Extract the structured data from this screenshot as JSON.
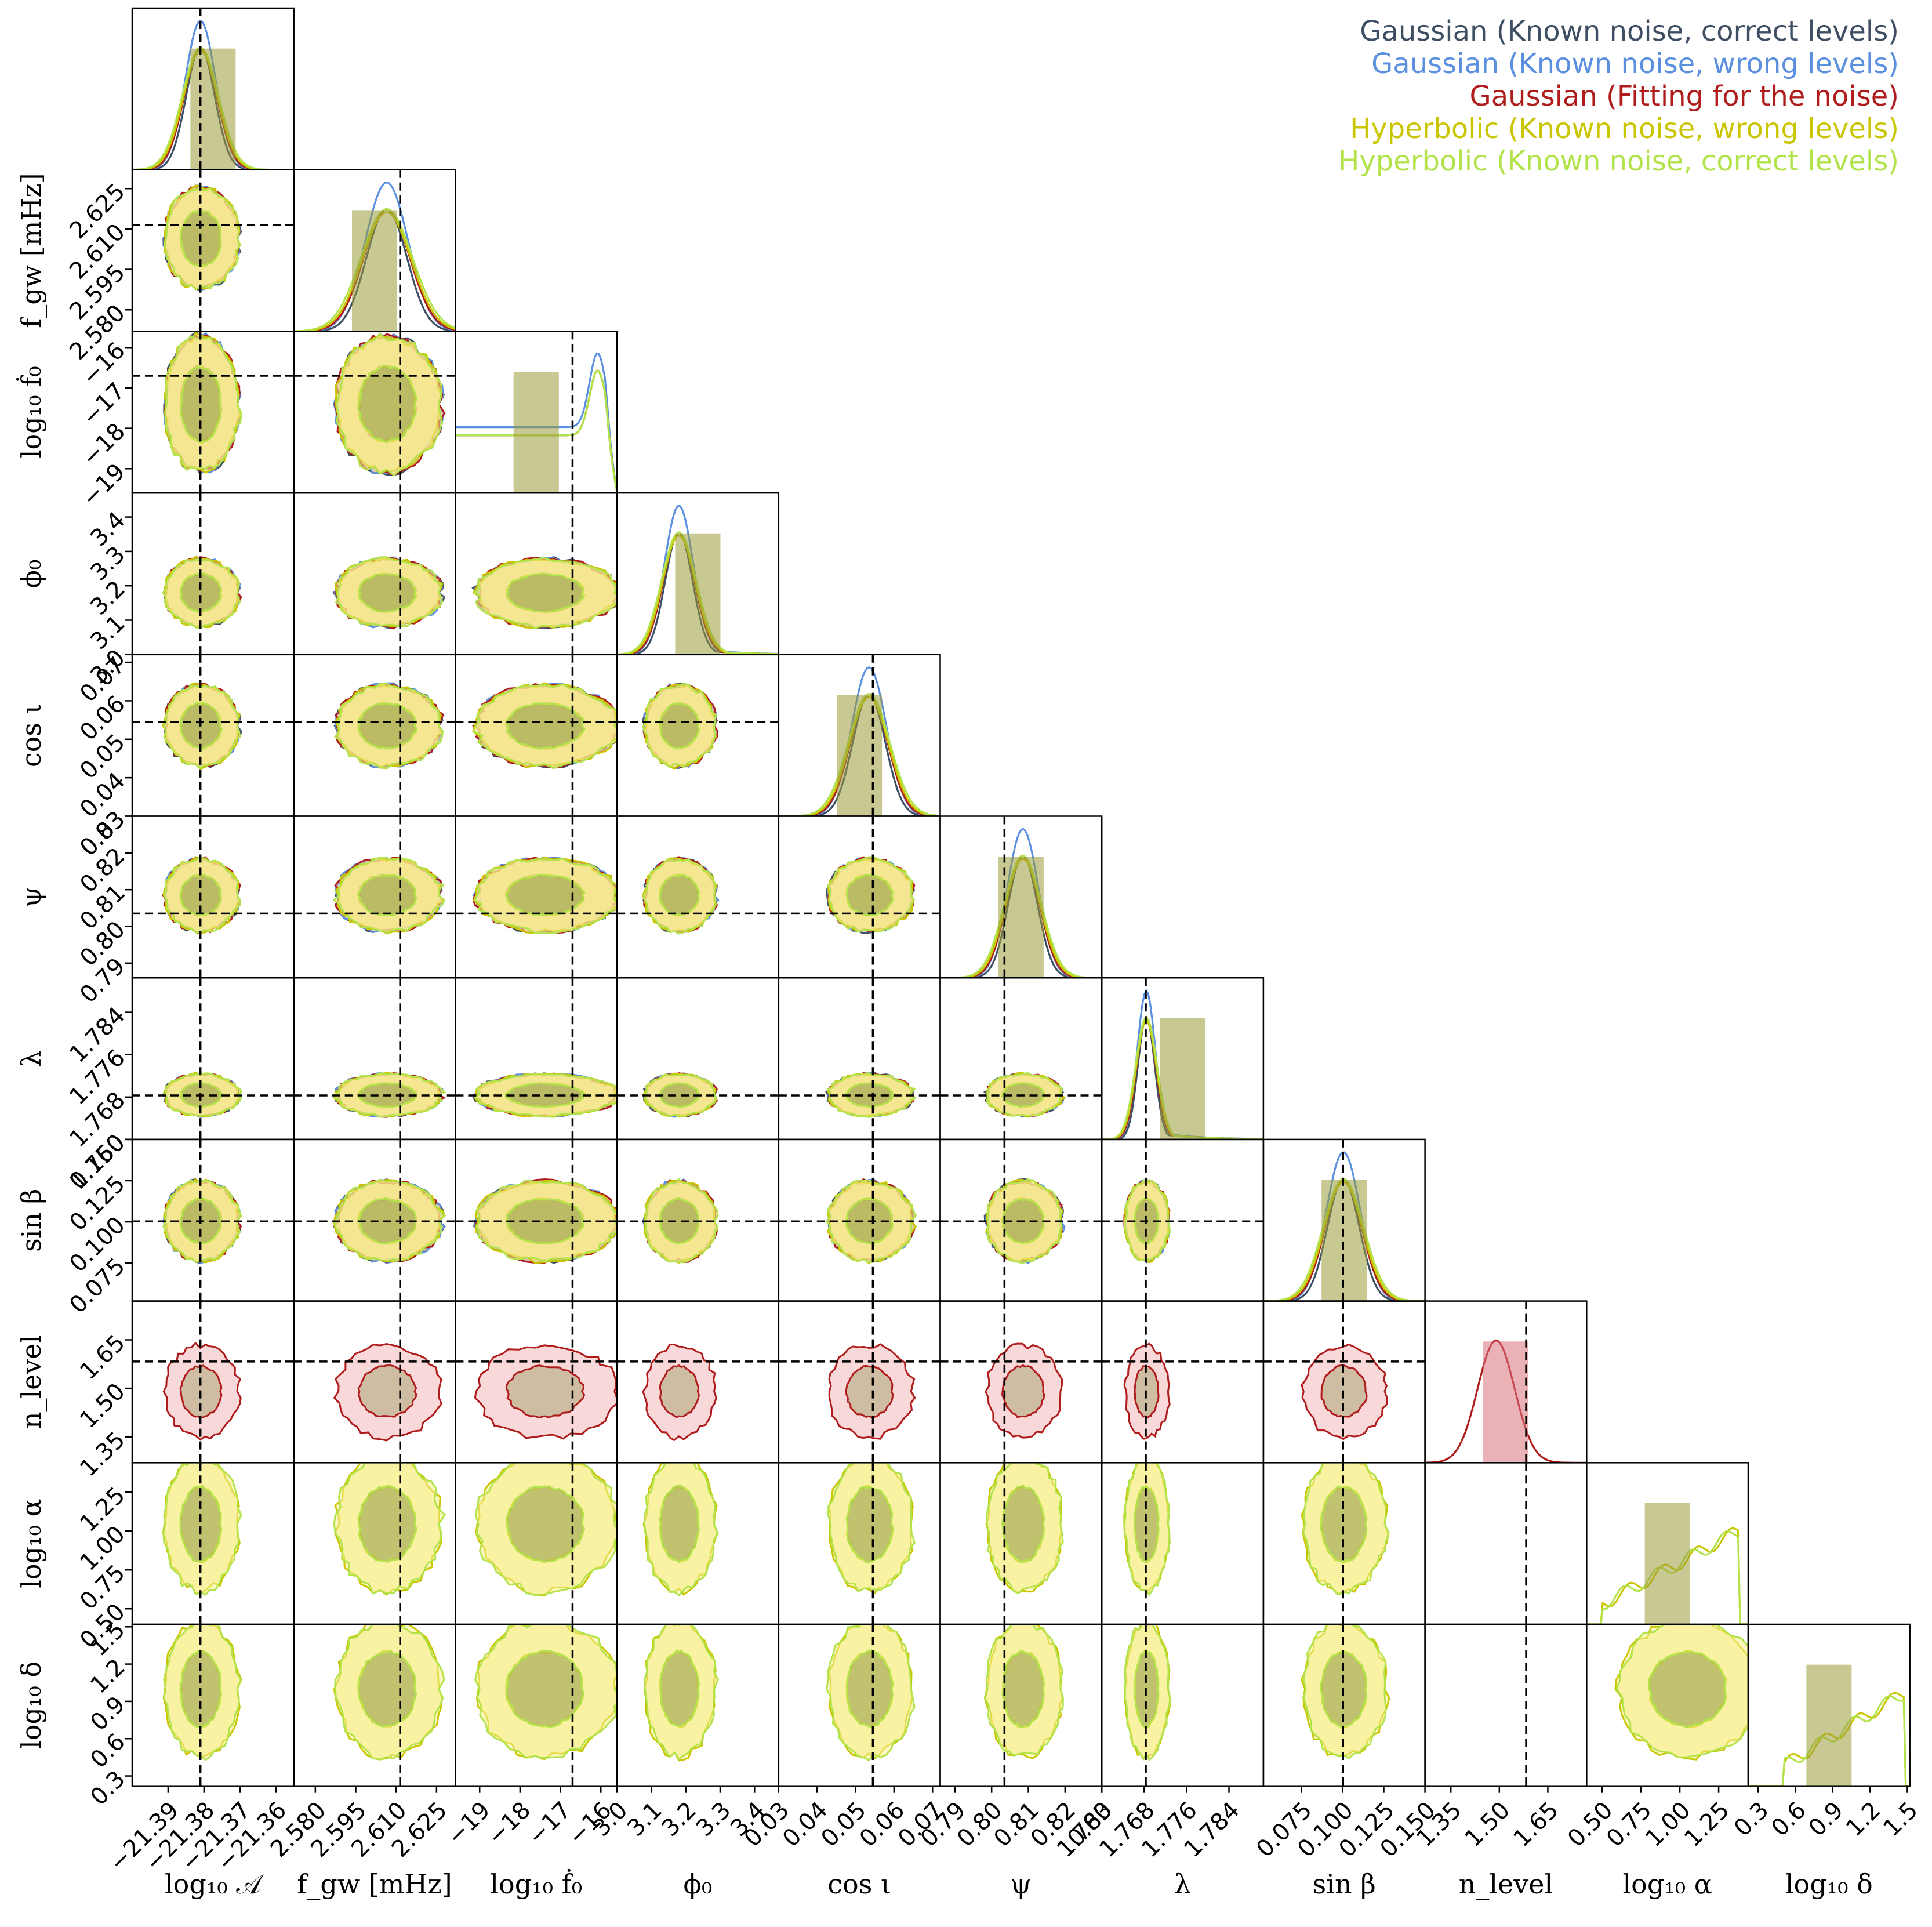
{
  "chart_data": {
    "type": "corner",
    "parameters": [
      {
        "id": "logA",
        "label": "log₁₀ 𝒜",
        "ticks": [
          "−21.39",
          "−21.38",
          "−21.37",
          "−21.36"
        ],
        "tick_values": [
          -21.39,
          -21.38,
          -21.37,
          -21.36
        ],
        "range": [
          -21.4,
          -21.355
        ],
        "truth": -21.381,
        "has_truth": true
      },
      {
        "id": "fgw",
        "label": "f_gw [mHz]",
        "ticks": [
          "2.580",
          "2.595",
          "2.610",
          "2.625"
        ],
        "tick_values": [
          2.58,
          2.595,
          2.61,
          2.625
        ],
        "range": [
          2.572,
          2.632
        ],
        "truth": 2.6115,
        "has_truth": true
      },
      {
        "id": "logfdot",
        "label": "log₁₀ ḟ₀",
        "ticks": [
          "−19",
          "−18",
          "−17",
          "−16"
        ],
        "tick_values": [
          -19,
          -18,
          -17,
          -16
        ],
        "range": [
          -19.6,
          -15.6
        ],
        "truth": -16.7,
        "has_truth": true
      },
      {
        "id": "phi0",
        "label": "ϕ₀",
        "ticks": [
          "3.0",
          "3.1",
          "3.2",
          "3.3",
          "3.4"
        ],
        "tick_values": [
          3.0,
          3.1,
          3.2,
          3.3,
          3.4
        ],
        "range": [
          3.0,
          3.47
        ],
        "truth": null,
        "has_truth": false
      },
      {
        "id": "cosi",
        "label": "cos ι",
        "ticks": [
          "0.03",
          "0.04",
          "0.05",
          "0.06",
          "0.07"
        ],
        "tick_values": [
          0.03,
          0.04,
          0.05,
          0.06,
          0.07
        ],
        "range": [
          0.03,
          0.072
        ],
        "truth": 0.0545,
        "has_truth": true
      },
      {
        "id": "psi",
        "label": "ψ",
        "ticks": [
          "0.79",
          "0.80",
          "0.81",
          "0.82",
          "0.83"
        ],
        "tick_values": [
          0.79,
          0.8,
          0.81,
          0.82,
          0.83
        ],
        "range": [
          0.786,
          0.83
        ],
        "truth": 0.8035,
        "has_truth": true
      },
      {
        "id": "lambda",
        "label": "λ",
        "ticks": [
          "1.760",
          "1.768",
          "1.776",
          "1.784"
        ],
        "tick_values": [
          1.76,
          1.768,
          1.776,
          1.784
        ],
        "range": [
          1.76,
          1.7905
        ],
        "truth": 1.7683,
        "has_truth": true
      },
      {
        "id": "sinbeta",
        "label": "sin β",
        "ticks": [
          "0.075",
          "0.100",
          "0.125",
          "0.150"
        ],
        "tick_values": [
          0.075,
          0.1,
          0.125,
          0.15
        ],
        "range": [
          0.052,
          0.15
        ],
        "truth": 0.1003,
        "has_truth": true
      },
      {
        "id": "nlevel",
        "label": "n_level",
        "ticks": [
          "1.35",
          "1.50",
          "1.65"
        ],
        "tick_values": [
          1.35,
          1.5,
          1.65
        ],
        "range": [
          1.27,
          1.77
        ],
        "truth": 1.583,
        "has_truth": true
      },
      {
        "id": "logalpha",
        "label": "log₁₀ α",
        "ticks": [
          "0.50",
          "0.75",
          "1.00",
          "1.25"
        ],
        "tick_values": [
          0.5,
          0.75,
          1.0,
          1.25
        ],
        "range": [
          0.4,
          1.44
        ],
        "truth": null,
        "has_truth": false
      },
      {
        "id": "logdelta",
        "label": "log₁₀ δ",
        "ticks": [
          "0.3",
          "0.6",
          "0.9",
          "1.2",
          "1.5"
        ],
        "tick_values": [
          0.3,
          0.6,
          0.9,
          1.2,
          1.5
        ],
        "range": [
          0.22,
          1.52
        ],
        "truth": null,
        "has_truth": false
      }
    ],
    "models": [
      {
        "name": "Gaussian (Known noise, correct levels)",
        "color": "#3e4f63",
        "params": [
          "logA",
          "fgw",
          "logfdot",
          "phi0",
          "cosi",
          "psi",
          "lambda",
          "sinbeta"
        ]
      },
      {
        "name": "Gaussian (Known noise, wrong levels)",
        "color": "#5b8fdf",
        "params": [
          "logA",
          "fgw",
          "logfdot",
          "phi0",
          "cosi",
          "psi",
          "lambda",
          "sinbeta"
        ]
      },
      {
        "name": "Gaussian (Fitting for the noise)",
        "color": "#b01c1c",
        "params": [
          "logA",
          "fgw",
          "logfdot",
          "phi0",
          "cosi",
          "psi",
          "lambda",
          "sinbeta",
          "nlevel"
        ]
      },
      {
        "name": "Hyperbolic (Known noise, wrong levels)",
        "color": "#c9c600",
        "params": [
          "logA",
          "fgw",
          "logfdot",
          "phi0",
          "cosi",
          "psi",
          "lambda",
          "sinbeta",
          "logalpha",
          "logdelta"
        ]
      },
      {
        "name": "Hyperbolic (Known noise, correct levels)",
        "color": "#b2e34a",
        "params": [
          "logA",
          "fgw",
          "logfdot",
          "phi0",
          "cosi",
          "psi",
          "lambda",
          "sinbeta",
          "logalpha",
          "logdelta"
        ]
      }
    ],
    "marginal_estimates": {
      "logA": {
        "mean": -21.381,
        "sd": 0.0045
      },
      "fgw": {
        "mean": 2.6065,
        "sd": 0.0085
      },
      "logfdot": {
        "shape": "flat-with-peak",
        "peak": -15.95,
        "floor": 0.4
      },
      "phi0": {
        "mean": 3.18,
        "sd": 0.045,
        "skew_tail_to": 3.45
      },
      "cosi": {
        "mean": 0.0535,
        "sd": 0.0048
      },
      "psi": {
        "mean": 0.8085,
        "sd": 0.0045
      },
      "lambda": {
        "mean": 1.7684,
        "sd": 0.0018,
        "skew_tail_to": 1.789
      },
      "sinbeta": {
        "mean": 0.1005,
        "sd": 0.011
      },
      "nlevel": {
        "mean": 1.49,
        "sd": 0.065
      },
      "logalpha": {
        "shape": "rising",
        "from": 0.5,
        "to": 1.38
      },
      "logdelta": {
        "shape": "rising",
        "from": 0.5,
        "to": 1.48
      }
    },
    "legend_position": "top-right",
    "truth_line_style": "dashed-black",
    "grid": false
  }
}
